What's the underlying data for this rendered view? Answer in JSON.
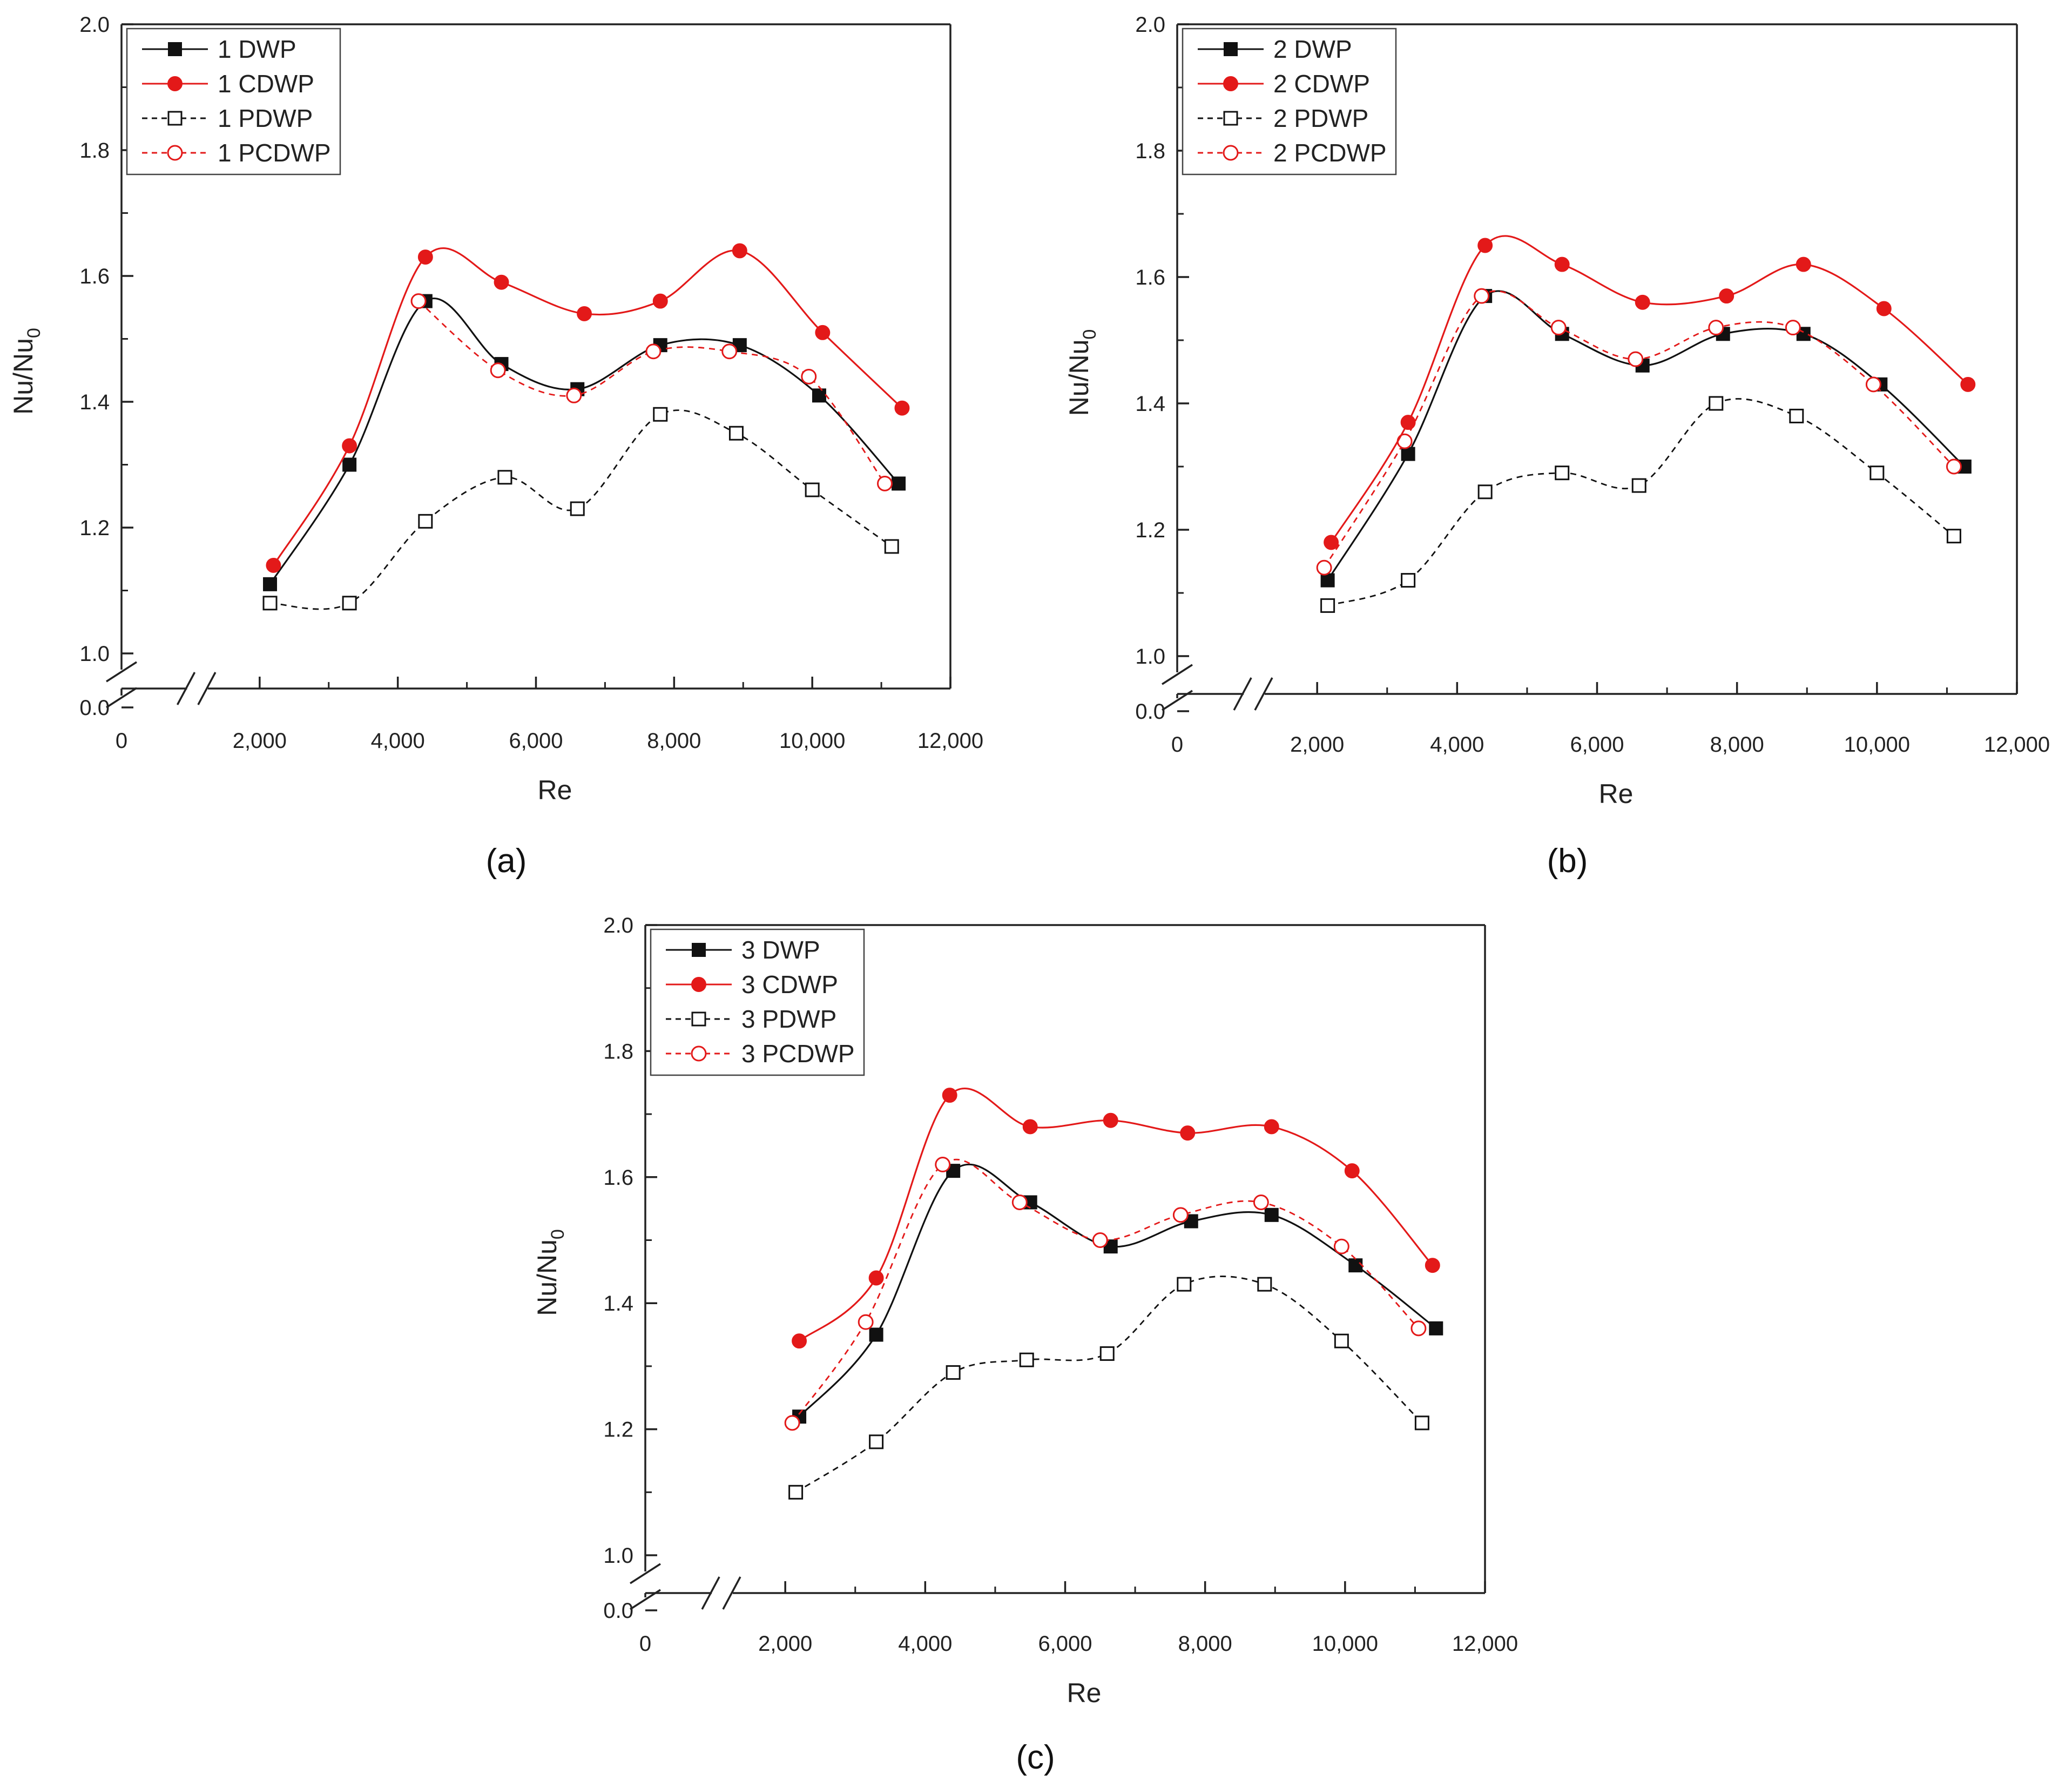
{
  "figure_description": "Three line charts of Nu/Nu0 versus Re for DWP, CDWP, PDWP and PCDWP configurations",
  "colors": {
    "black_series": "#111111",
    "red_series": "#e31919",
    "axis": "#222222"
  },
  "chart_data": [
    {
      "panel_label": "(a)",
      "type": "line",
      "xlabel": "Re",
      "ylabel": "Nu/Nu",
      "ylabel_subscript": "0",
      "ylim": [
        1.0,
        2.0
      ],
      "xlim": [
        0,
        12000
      ],
      "y_ticks": [
        "2.0",
        "1.8",
        "1.6",
        "1.4",
        "1.2",
        "1.0"
      ],
      "y_break_tick": "0.0",
      "x_ticks": [
        "0",
        "2,000",
        "4,000",
        "6,000",
        "8,000",
        "10,000",
        "12,000"
      ],
      "x_tick_values": [
        0,
        2000,
        4000,
        6000,
        8000,
        10000,
        12000
      ],
      "legend_position": "top-left",
      "series": [
        {
          "name": "1 DWP",
          "color": "#111111",
          "marker": "filled-square",
          "line": "solid",
          "x": [
            2150,
            3300,
            4400,
            5500,
            6600,
            7800,
            8950,
            10100,
            11250
          ],
          "y": [
            1.11,
            1.3,
            1.56,
            1.46,
            1.42,
            1.49,
            1.49,
            1.41,
            1.27
          ]
        },
        {
          "name": "1 CDWP",
          "color": "#e31919",
          "marker": "filled-circle",
          "line": "solid",
          "x": [
            2200,
            3300,
            4400,
            5500,
            6700,
            7800,
            8950,
            10150,
            11300
          ],
          "y": [
            1.14,
            1.33,
            1.63,
            1.59,
            1.54,
            1.56,
            1.64,
            1.51,
            1.39
          ]
        },
        {
          "name": "1 PDWP",
          "color": "#111111",
          "marker": "open-square",
          "line": "dashed",
          "x": [
            2150,
            3300,
            4400,
            5550,
            6600,
            7800,
            8900,
            10000,
            11150
          ],
          "y": [
            1.08,
            1.08,
            1.21,
            1.28,
            1.23,
            1.38,
            1.35,
            1.26,
            1.17
          ]
        },
        {
          "name": "1 PCDWP",
          "color": "#e31919",
          "marker": "open-circle",
          "line": "dashed",
          "x": [
            4300,
            5450,
            6550,
            7700,
            8800,
            9950,
            11050
          ],
          "y": [
            1.56,
            1.45,
            1.41,
            1.48,
            1.48,
            1.44,
            1.27
          ]
        }
      ]
    },
    {
      "panel_label": "(b)",
      "type": "line",
      "xlabel": "Re",
      "ylabel": "Nu/Nu",
      "ylabel_subscript": "0",
      "ylim": [
        1.0,
        2.0
      ],
      "xlim": [
        0,
        12000
      ],
      "y_ticks": [
        "2.0",
        "1.8",
        "1.6",
        "1.4",
        "1.2",
        "1.0"
      ],
      "y_break_tick": "0.0",
      "x_ticks": [
        "0",
        "2,000",
        "4,000",
        "6,000",
        "8,000",
        "10,000",
        "12,000"
      ],
      "x_tick_values": [
        0,
        2000,
        4000,
        6000,
        8000,
        10000,
        12000
      ],
      "legend_position": "top-left",
      "series": [
        {
          "name": "2 DWP",
          "color": "#111111",
          "marker": "filled-square",
          "line": "solid",
          "x": [
            2150,
            3300,
            4400,
            5500,
            6650,
            7800,
            8950,
            10050,
            11250
          ],
          "y": [
            1.12,
            1.32,
            1.57,
            1.51,
            1.46,
            1.51,
            1.51,
            1.43,
            1.3
          ]
        },
        {
          "name": "2 CDWP",
          "color": "#e31919",
          "marker": "filled-circle",
          "line": "solid",
          "x": [
            2200,
            3300,
            4400,
            5500,
            6650,
            7850,
            8950,
            10100,
            11300
          ],
          "y": [
            1.18,
            1.37,
            1.65,
            1.62,
            1.56,
            1.57,
            1.62,
            1.55,
            1.43
          ]
        },
        {
          "name": "2 PDWP",
          "color": "#111111",
          "marker": "open-square",
          "line": "dashed",
          "x": [
            2150,
            3300,
            4400,
            5500,
            6600,
            7700,
            8850,
            10000,
            11100
          ],
          "y": [
            1.08,
            1.12,
            1.26,
            1.29,
            1.27,
            1.4,
            1.38,
            1.29,
            1.19
          ]
        },
        {
          "name": "2 PCDWP",
          "color": "#e31919",
          "marker": "open-circle",
          "line": "dashed",
          "x": [
            2100,
            3250,
            4350,
            5450,
            6550,
            7700,
            8800,
            9950,
            11100
          ],
          "y": [
            1.14,
            1.34,
            1.57,
            1.52,
            1.47,
            1.52,
            1.52,
            1.43,
            1.3
          ]
        }
      ]
    },
    {
      "panel_label": "(c)",
      "type": "line",
      "xlabel": "Re",
      "ylabel": "Nu/Nu",
      "ylabel_subscript": "0",
      "ylim": [
        1.0,
        2.0
      ],
      "xlim": [
        0,
        12000
      ],
      "y_ticks": [
        "2.0",
        "1.8",
        "1.6",
        "1.4",
        "1.2",
        "1.0"
      ],
      "y_break_tick": "0.0",
      "x_ticks": [
        "0",
        "2,000",
        "4,000",
        "6,000",
        "8,000",
        "10,000",
        "12,000"
      ],
      "x_tick_values": [
        0,
        2000,
        4000,
        6000,
        8000,
        10000,
        12000
      ],
      "legend_position": "top-left",
      "series": [
        {
          "name": "3 DWP",
          "color": "#111111",
          "marker": "filled-square",
          "line": "solid",
          "x": [
            2200,
            3300,
            4400,
            5500,
            6650,
            7800,
            8950,
            10150,
            11300
          ],
          "y": [
            1.22,
            1.35,
            1.61,
            1.56,
            1.49,
            1.53,
            1.54,
            1.46,
            1.36
          ]
        },
        {
          "name": "3 CDWP",
          "color": "#e31919",
          "marker": "filled-circle",
          "line": "solid",
          "x": [
            2200,
            3300,
            4350,
            5500,
            6650,
            7750,
            8950,
            10100,
            11250
          ],
          "y": [
            1.34,
            1.44,
            1.73,
            1.68,
            1.69,
            1.67,
            1.68,
            1.61,
            1.46
          ]
        },
        {
          "name": "3 PDWP",
          "color": "#111111",
          "marker": "open-square",
          "line": "dashed",
          "x": [
            2150,
            3300,
            4400,
            5450,
            6600,
            7700,
            8850,
            9950,
            11100
          ],
          "y": [
            1.1,
            1.18,
            1.29,
            1.31,
            1.32,
            1.43,
            1.43,
            1.34,
            1.21
          ]
        },
        {
          "name": "3 PCDWP",
          "color": "#e31919",
          "marker": "open-circle",
          "line": "dashed",
          "x": [
            2100,
            3150,
            4250,
            5350,
            6500,
            7650,
            8800,
            9950,
            11050
          ],
          "y": [
            1.21,
            1.37,
            1.62,
            1.56,
            1.5,
            1.54,
            1.56,
            1.49,
            1.36
          ]
        }
      ]
    }
  ]
}
